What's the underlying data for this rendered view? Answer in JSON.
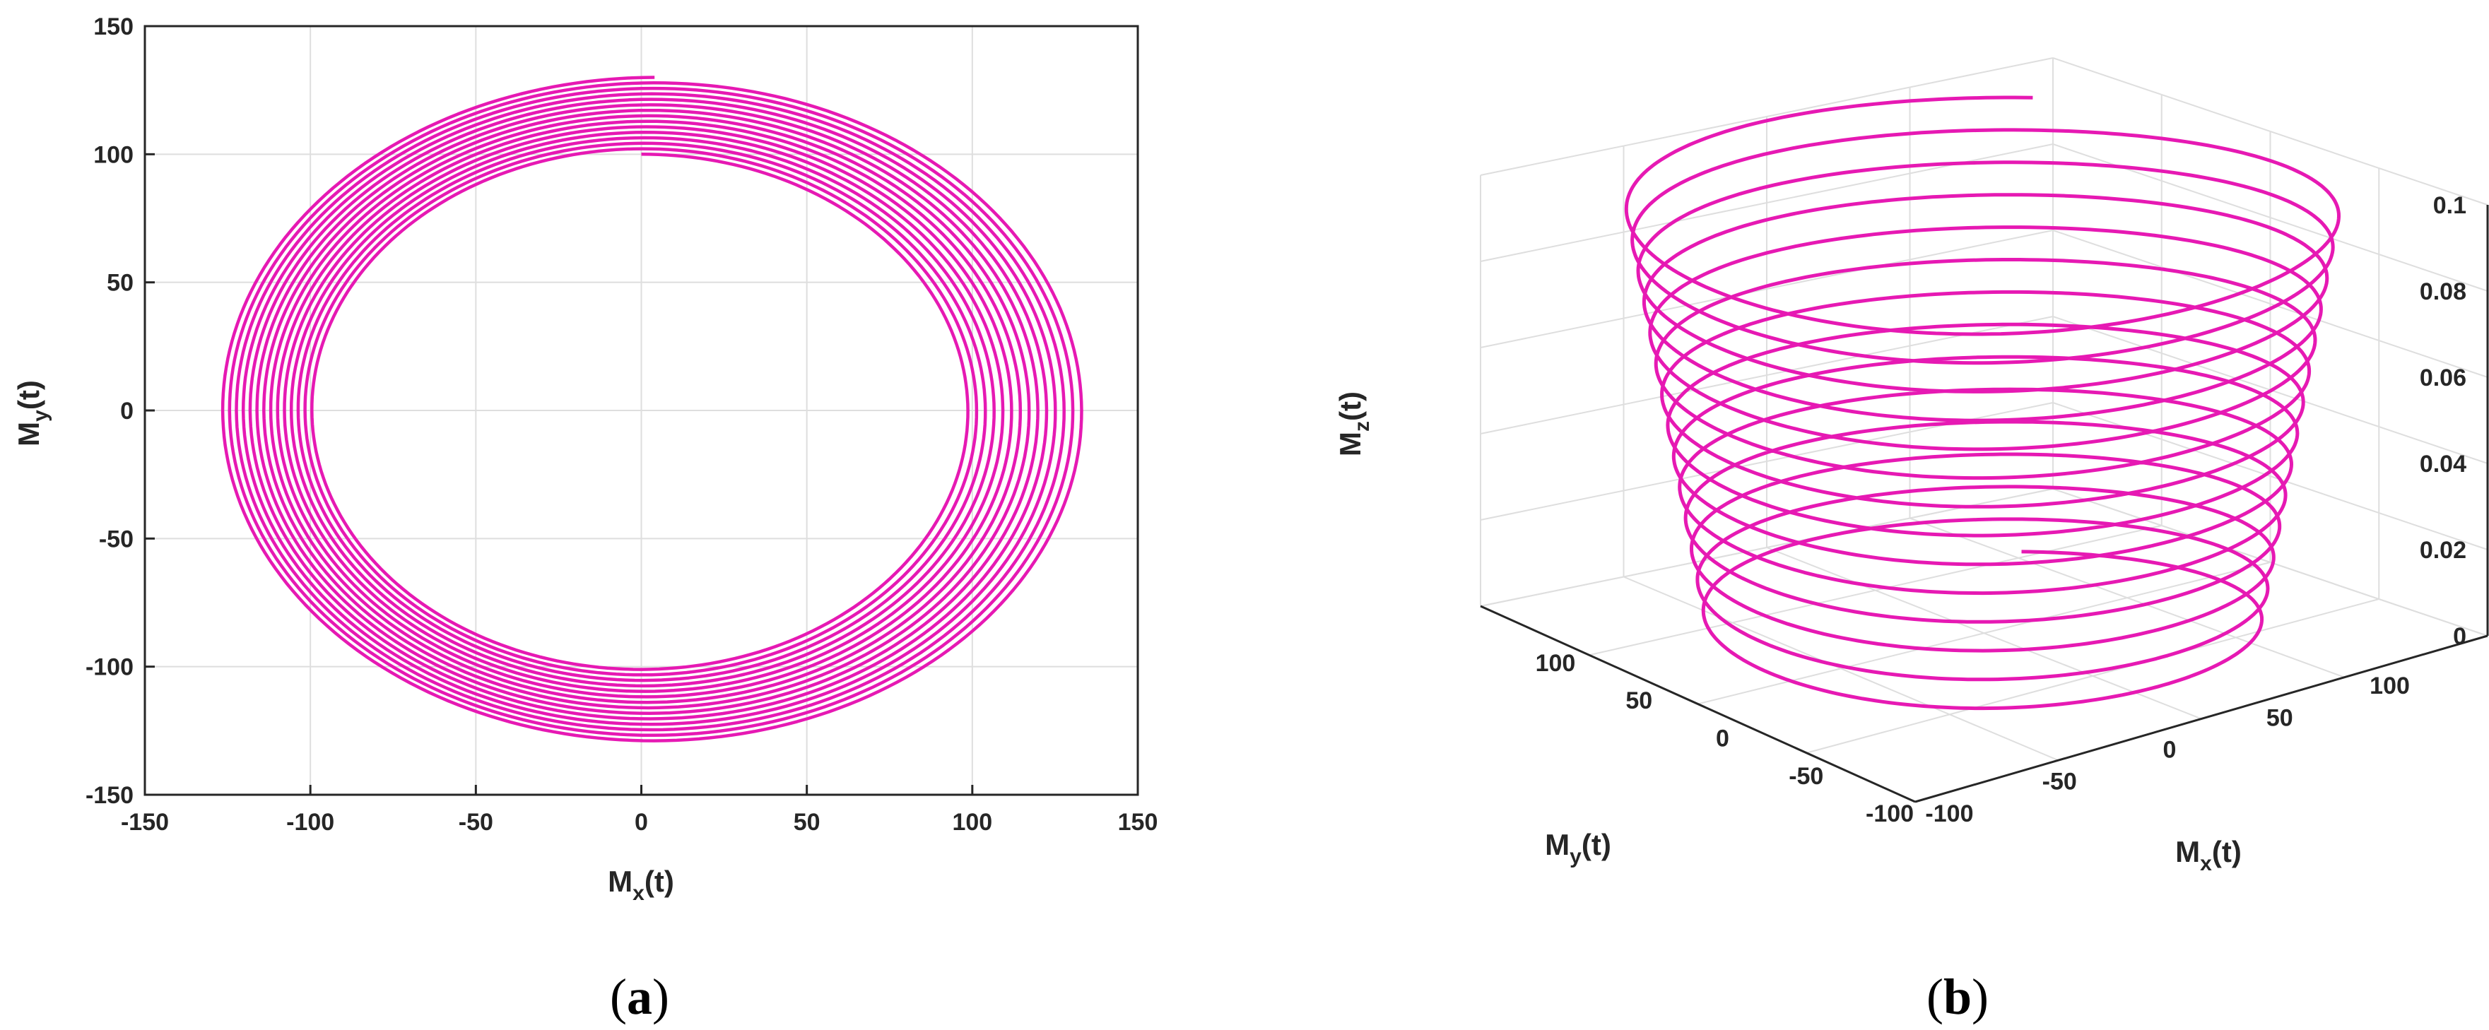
{
  "panels": {
    "a": {
      "open": "(",
      "letter": "a",
      "close": ")"
    },
    "b": {
      "open": "(",
      "letter": "b",
      "close": ")"
    }
  },
  "chart_data": [
    {
      "type": "line",
      "panel": "a",
      "xlabel": {
        "main": "M",
        "sub": "x",
        "rest": "(t)"
      },
      "ylabel": {
        "main": "M",
        "sub": "y",
        "rest": "(t)"
      },
      "xlim": [
        -150,
        150
      ],
      "ylim": [
        -150,
        150
      ],
      "xticks": [
        "-150",
        "-100",
        "-50",
        "0",
        "50",
        "100",
        "150"
      ],
      "yticks": [
        "150",
        "100",
        "50",
        "0",
        "-50",
        "-100",
        "-150"
      ],
      "grid": true,
      "line_color": "#e619b3",
      "series": [
        {
          "curve": "spiral",
          "turns": 14,
          "r_outer_x": 131,
          "r_inner_x": 98,
          "r_outer_y": 130,
          "r_inner_y": 100,
          "start_angle_deg": 90
        }
      ]
    },
    {
      "type": "line",
      "panel": "b",
      "view": "3d",
      "xlabel": {
        "main": "M",
        "sub": "x",
        "rest": "(t)"
      },
      "ylabel": {
        "main": "M",
        "sub": "y",
        "rest": "(t)"
      },
      "zlabel": {
        "main": "M",
        "sub": "z",
        "rest": "(t)"
      },
      "xticks": [
        "-100",
        "-50",
        "0",
        "50",
        "100"
      ],
      "yticks": [
        "100",
        "50",
        "0",
        "-50",
        "-100"
      ],
      "zticks": [
        "0.1",
        "0.08",
        "0.06",
        "0.04",
        "0.02",
        "0"
      ],
      "xlim": [
        -130,
        130
      ],
      "ylim": [
        -130,
        130
      ],
      "zlim": [
        0,
        0.1
      ],
      "grid": true,
      "line_color": "#e619b3",
      "series": [
        {
          "curve": "helix",
          "turns": 14,
          "r_bottom": 100,
          "r_top": 130,
          "z_bottom": 0,
          "z_top": 0.1
        }
      ]
    }
  ]
}
